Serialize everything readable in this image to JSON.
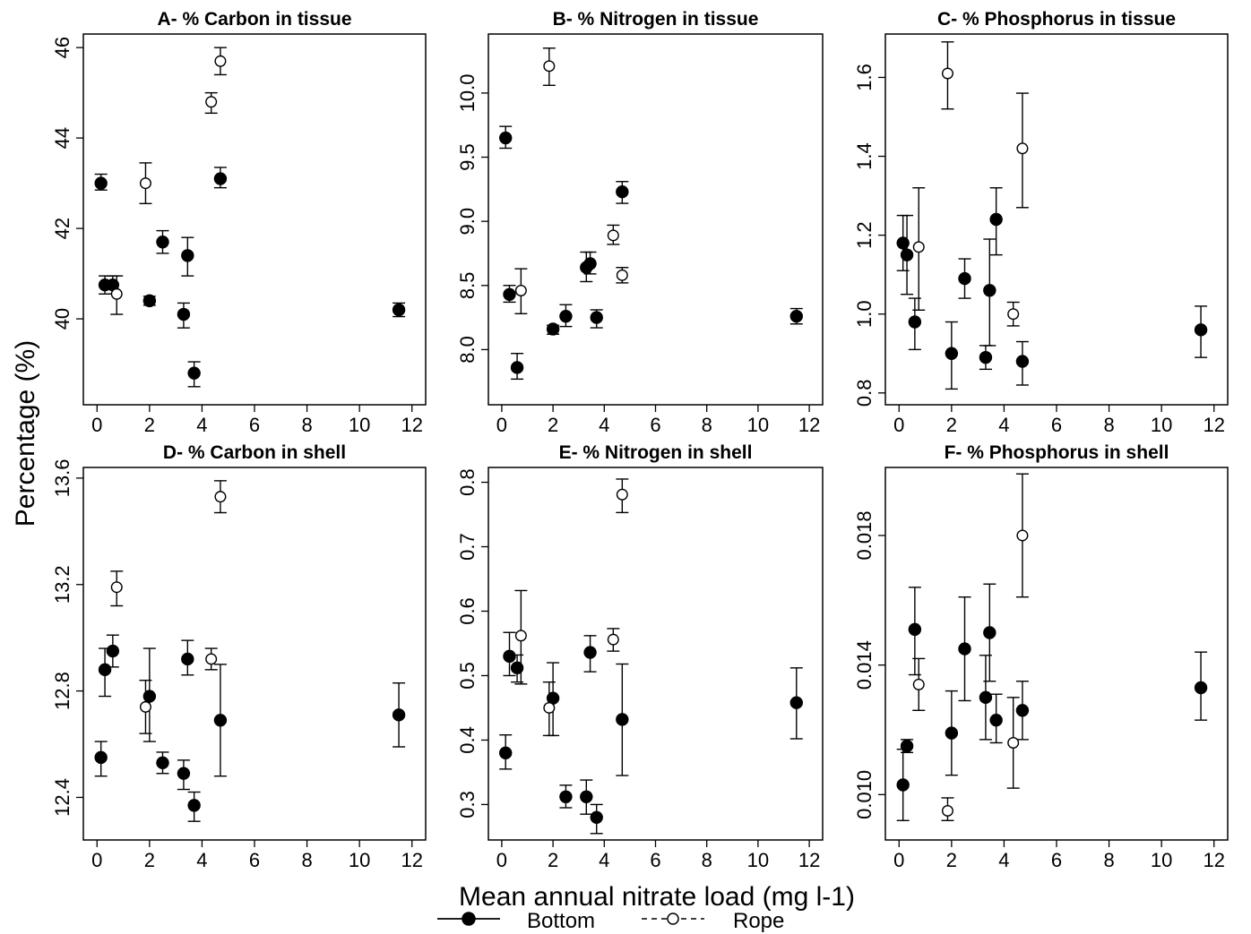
{
  "figure": {
    "ylabel": "Percentage (%)",
    "xlabel": "Mean annual nitrate load (mg l-1)"
  },
  "legend": {
    "bottom_label": "Bottom",
    "rope_label": "Rope"
  },
  "chart_data": [
    {
      "type": "scatter",
      "panel": "A",
      "title": "A- % Carbon in tissue",
      "xlim": [
        0,
        12
      ],
      "ylim": [
        38.1,
        46.3
      ],
      "xticks": [
        "0",
        "2",
        "4",
        "6",
        "8",
        "10",
        "12"
      ],
      "yticks": [
        "40",
        "42",
        "44",
        "46"
      ],
      "series": [
        {
          "name": "Bottom",
          "points": [
            {
              "x": 0.15,
              "y": 43.0,
              "lo": 42.85,
              "hi": 43.2
            },
            {
              "x": 0.3,
              "y": 40.75,
              "lo": 40.55,
              "hi": 40.95
            },
            {
              "x": 0.6,
              "y": 40.75,
              "lo": 40.55,
              "hi": 40.95
            },
            {
              "x": 2.0,
              "y": 40.4,
              "lo": 40.3,
              "hi": 40.5
            },
            {
              "x": 2.5,
              "y": 41.7,
              "lo": 41.45,
              "hi": 41.95
            },
            {
              "x": 3.3,
              "y": 40.1,
              "lo": 39.8,
              "hi": 40.35
            },
            {
              "x": 3.45,
              "y": 41.4,
              "lo": 40.95,
              "hi": 41.8
            },
            {
              "x": 3.7,
              "y": 38.8,
              "lo": 38.5,
              "hi": 39.05
            },
            {
              "x": 4.7,
              "y": 43.1,
              "lo": 42.9,
              "hi": 43.35
            },
            {
              "x": 11.5,
              "y": 40.2,
              "lo": 40.05,
              "hi": 40.35
            }
          ]
        },
        {
          "name": "Rope",
          "points": [
            {
              "x": 0.75,
              "y": 40.55,
              "lo": 40.1,
              "hi": 40.95
            },
            {
              "x": 1.85,
              "y": 43.0,
              "lo": 42.55,
              "hi": 43.45
            },
            {
              "x": 4.35,
              "y": 44.8,
              "lo": 44.55,
              "hi": 45.0
            },
            {
              "x": 4.7,
              "y": 45.7,
              "lo": 45.4,
              "hi": 46.0
            }
          ]
        }
      ]
    },
    {
      "type": "scatter",
      "panel": "B",
      "title": "B- % Nitrogen in tissue",
      "xlim": [
        0,
        12
      ],
      "ylim": [
        7.57,
        10.46
      ],
      "xticks": [
        "0",
        "2",
        "4",
        "6",
        "8",
        "10",
        "12"
      ],
      "yticks": [
        "8.0",
        "8.5",
        "9.0",
        "9.5",
        "10.0"
      ],
      "series": [
        {
          "name": "Bottom",
          "points": [
            {
              "x": 0.15,
              "y": 9.65,
              "lo": 9.57,
              "hi": 9.74
            },
            {
              "x": 0.3,
              "y": 8.43,
              "lo": 8.37,
              "hi": 8.5
            },
            {
              "x": 0.6,
              "y": 7.86,
              "lo": 7.77,
              "hi": 7.97
            },
            {
              "x": 2.0,
              "y": 8.16,
              "lo": 8.12,
              "hi": 8.19
            },
            {
              "x": 2.5,
              "y": 8.26,
              "lo": 8.18,
              "hi": 8.35
            },
            {
              "x": 3.3,
              "y": 8.64,
              "lo": 8.53,
              "hi": 8.76
            },
            {
              "x": 3.45,
              "y": 8.67,
              "lo": 8.59,
              "hi": 8.76
            },
            {
              "x": 3.7,
              "y": 8.25,
              "lo": 8.17,
              "hi": 8.31
            },
            {
              "x": 4.7,
              "y": 9.23,
              "lo": 9.14,
              "hi": 9.31
            },
            {
              "x": 11.5,
              "y": 8.26,
              "lo": 8.2,
              "hi": 8.32
            }
          ]
        },
        {
          "name": "Rope",
          "points": [
            {
              "x": 0.75,
              "y": 8.46,
              "lo": 8.28,
              "hi": 8.63
            },
            {
              "x": 1.85,
              "y": 10.21,
              "lo": 10.06,
              "hi": 10.35
            },
            {
              "x": 4.35,
              "y": 8.89,
              "lo": 8.82,
              "hi": 8.97
            },
            {
              "x": 4.7,
              "y": 8.58,
              "lo": 8.52,
              "hi": 8.64
            }
          ]
        }
      ]
    },
    {
      "type": "scatter",
      "panel": "C",
      "title": "C- % Phosphorus in tissue",
      "xlim": [
        0,
        12
      ],
      "ylim": [
        0.77,
        1.71
      ],
      "xticks": [
        "0",
        "2",
        "4",
        "6",
        "8",
        "10",
        "12"
      ],
      "yticks": [
        "0.8",
        "1.0",
        "1.2",
        "1.4",
        "1.6"
      ],
      "series": [
        {
          "name": "Bottom",
          "points": [
            {
              "x": 0.15,
              "y": 1.18,
              "lo": 1.11,
              "hi": 1.25
            },
            {
              "x": 0.3,
              "y": 1.15,
              "lo": 1.05,
              "hi": 1.25
            },
            {
              "x": 0.6,
              "y": 0.98,
              "lo": 0.91,
              "hi": 1.04
            },
            {
              "x": 2.0,
              "y": 0.9,
              "lo": 0.81,
              "hi": 0.98
            },
            {
              "x": 2.5,
              "y": 1.09,
              "lo": 1.04,
              "hi": 1.14
            },
            {
              "x": 3.3,
              "y": 0.89,
              "lo": 0.86,
              "hi": 0.92
            },
            {
              "x": 3.45,
              "y": 1.06,
              "lo": 0.92,
              "hi": 1.19
            },
            {
              "x": 3.7,
              "y": 1.24,
              "lo": 1.15,
              "hi": 1.32
            },
            {
              "x": 4.7,
              "y": 0.88,
              "lo": 0.82,
              "hi": 0.93
            },
            {
              "x": 11.5,
              "y": 0.96,
              "lo": 0.89,
              "hi": 1.02
            }
          ]
        },
        {
          "name": "Rope",
          "points": [
            {
              "x": 0.75,
              "y": 1.17,
              "lo": 1.01,
              "hi": 1.32
            },
            {
              "x": 1.85,
              "y": 1.61,
              "lo": 1.52,
              "hi": 1.69
            },
            {
              "x": 4.35,
              "y": 1.0,
              "lo": 0.97,
              "hi": 1.03
            },
            {
              "x": 4.7,
              "y": 1.42,
              "lo": 1.27,
              "hi": 1.56
            }
          ]
        }
      ]
    },
    {
      "type": "scatter",
      "panel": "D",
      "title": "D- % Carbon in shell",
      "xlim": [
        0,
        12
      ],
      "ylim": [
        12.24,
        13.64
      ],
      "xticks": [
        "0",
        "2",
        "4",
        "6",
        "8",
        "10",
        "12"
      ],
      "yticks": [
        "12.4",
        "12.8",
        "13.2",
        "13.6"
      ],
      "series": [
        {
          "name": "Bottom",
          "points": [
            {
              "x": 0.15,
              "y": 12.55,
              "lo": 12.48,
              "hi": 12.61
            },
            {
              "x": 0.3,
              "y": 12.88,
              "lo": 12.78,
              "hi": 12.96
            },
            {
              "x": 0.6,
              "y": 12.95,
              "lo": 12.89,
              "hi": 13.01
            },
            {
              "x": 2.0,
              "y": 12.78,
              "lo": 12.61,
              "hi": 12.96
            },
            {
              "x": 2.5,
              "y": 12.53,
              "lo": 12.49,
              "hi": 12.57
            },
            {
              "x": 3.3,
              "y": 12.49,
              "lo": 12.43,
              "hi": 12.54
            },
            {
              "x": 3.45,
              "y": 12.92,
              "lo": 12.86,
              "hi": 12.99
            },
            {
              "x": 3.7,
              "y": 12.37,
              "lo": 12.31,
              "hi": 12.42
            },
            {
              "x": 4.7,
              "y": 12.69,
              "lo": 12.48,
              "hi": 12.9
            },
            {
              "x": 11.5,
              "y": 12.71,
              "lo": 12.59,
              "hi": 12.83
            }
          ]
        },
        {
          "name": "Rope",
          "points": [
            {
              "x": 0.75,
              "y": 13.19,
              "lo": 13.12,
              "hi": 13.25
            },
            {
              "x": 1.85,
              "y": 12.74,
              "lo": 12.64,
              "hi": 12.84
            },
            {
              "x": 4.35,
              "y": 12.92,
              "lo": 12.88,
              "hi": 12.96
            },
            {
              "x": 4.7,
              "y": 13.53,
              "lo": 13.47,
              "hi": 13.59
            }
          ]
        }
      ]
    },
    {
      "type": "scatter",
      "panel": "E",
      "title": "E- % Nitrogen in shell",
      "xlim": [
        0,
        12
      ],
      "ylim": [
        0.245,
        0.823
      ],
      "xticks": [
        "0",
        "2",
        "4",
        "6",
        "8",
        "10",
        "12"
      ],
      "yticks": [
        "0.3",
        "0.4",
        "0.5",
        "0.6",
        "0.7",
        "0.8"
      ],
      "series": [
        {
          "name": "Bottom",
          "points": [
            {
              "x": 0.15,
              "y": 0.38,
              "lo": 0.355,
              "hi": 0.408
            },
            {
              "x": 0.3,
              "y": 0.53,
              "lo": 0.5,
              "hi": 0.567
            },
            {
              "x": 0.6,
              "y": 0.512,
              "lo": 0.49,
              "hi": 0.532
            },
            {
              "x": 2.0,
              "y": 0.465,
              "lo": 0.407,
              "hi": 0.52
            },
            {
              "x": 2.5,
              "y": 0.312,
              "lo": 0.295,
              "hi": 0.33
            },
            {
              "x": 3.3,
              "y": 0.312,
              "lo": 0.285,
              "hi": 0.338
            },
            {
              "x": 3.45,
              "y": 0.536,
              "lo": 0.506,
              "hi": 0.562
            },
            {
              "x": 3.7,
              "y": 0.28,
              "lo": 0.255,
              "hi": 0.3
            },
            {
              "x": 4.7,
              "y": 0.432,
              "lo": 0.345,
              "hi": 0.518
            },
            {
              "x": 11.5,
              "y": 0.458,
              "lo": 0.402,
              "hi": 0.512
            }
          ]
        },
        {
          "name": "Rope",
          "points": [
            {
              "x": 0.75,
              "y": 0.562,
              "lo": 0.487,
              "hi": 0.632
            },
            {
              "x": 1.85,
              "y": 0.45,
              "lo": 0.407,
              "hi": 0.49
            },
            {
              "x": 4.35,
              "y": 0.556,
              "lo": 0.538,
              "hi": 0.573
            },
            {
              "x": 4.7,
              "y": 0.781,
              "lo": 0.753,
              "hi": 0.805
            }
          ]
        }
      ]
    },
    {
      "type": "scatter",
      "panel": "F",
      "title": "F- % Phosphorus in shell",
      "xlim": [
        0,
        12
      ],
      "ylim": [
        0.0086,
        0.0201
      ],
      "xticks": [
        "0",
        "2",
        "4",
        "6",
        "8",
        "10",
        "12"
      ],
      "yticks": [
        "0.010",
        "0.014",
        "0.018"
      ],
      "series": [
        {
          "name": "Bottom",
          "points": [
            {
              "x": 0.15,
              "y": 0.0103,
              "lo": 0.0092,
              "hi": 0.0114
            },
            {
              "x": 0.3,
              "y": 0.0115,
              "lo": 0.0113,
              "hi": 0.0117
            },
            {
              "x": 0.6,
              "y": 0.0151,
              "lo": 0.0137,
              "hi": 0.0164
            },
            {
              "x": 2.0,
              "y": 0.0119,
              "lo": 0.0106,
              "hi": 0.0132
            },
            {
              "x": 2.5,
              "y": 0.0145,
              "lo": 0.0129,
              "hi": 0.0161
            },
            {
              "x": 3.3,
              "y": 0.013,
              "lo": 0.0117,
              "hi": 0.0143
            },
            {
              "x": 3.45,
              "y": 0.015,
              "lo": 0.0135,
              "hi": 0.0165
            },
            {
              "x": 3.7,
              "y": 0.0123,
              "lo": 0.0116,
              "hi": 0.0131
            },
            {
              "x": 4.7,
              "y": 0.0126,
              "lo": 0.0117,
              "hi": 0.0135
            },
            {
              "x": 11.5,
              "y": 0.0133,
              "lo": 0.0123,
              "hi": 0.0144
            }
          ]
        },
        {
          "name": "Rope",
          "points": [
            {
              "x": 0.75,
              "y": 0.0134,
              "lo": 0.0126,
              "hi": 0.0142
            },
            {
              "x": 1.85,
              "y": 0.0095,
              "lo": 0.0092,
              "hi": 0.0099
            },
            {
              "x": 4.35,
              "y": 0.0116,
              "lo": 0.0102,
              "hi": 0.013
            },
            {
              "x": 4.7,
              "y": 0.018,
              "lo": 0.0161,
              "hi": 0.0199
            }
          ]
        }
      ]
    }
  ]
}
